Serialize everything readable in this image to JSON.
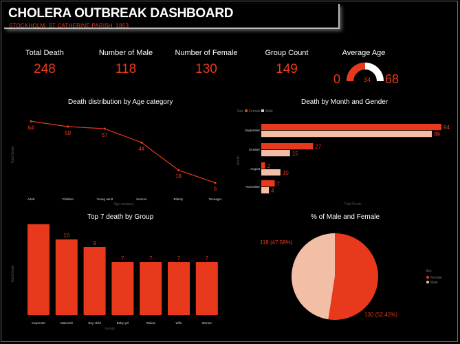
{
  "header": {
    "title": "CHOLERA OUTBREAK DASHBOARD",
    "subtitle": "STOCKHOLM- ST CATHERINE PARISH, 1853"
  },
  "kpis": {
    "total_death": {
      "label": "Total Death",
      "value": "248"
    },
    "male": {
      "label": "Number of Male",
      "value": "118"
    },
    "female": {
      "label": "Number of Female",
      "value": "130"
    },
    "group_count": {
      "label": "Group Count",
      "value": "149"
    },
    "average_age": {
      "label": "Average Age",
      "min": "0",
      "value": "34",
      "max": "68"
    }
  },
  "colors": {
    "accent": "#e8391d",
    "light": "#f3bea6",
    "gauge_track": "#ffffff"
  },
  "chart_data": [
    {
      "id": "age",
      "type": "line",
      "title": "Death distribution by Age category",
      "xlabel": "Age category",
      "ylabel": "Total Death",
      "categories": [
        "Adult",
        "Children",
        "Young adult",
        "Seniors",
        "Elderly",
        "Teenager"
      ],
      "values": [
        64,
        59,
        57,
        44,
        18,
        6
      ],
      "ylim": [
        0,
        70
      ]
    },
    {
      "id": "month",
      "type": "bar",
      "orientation": "horizontal",
      "title": "Death by Month and Gender",
      "legend_title": "Sex",
      "xlabel": "Total Death",
      "ylabel": "Month",
      "categories": [
        "September",
        "October",
        "August",
        "November"
      ],
      "series": [
        {
          "name": "Female",
          "values": [
            94,
            27,
            2,
            7
          ]
        },
        {
          "name": "Male",
          "values": [
            89,
            15,
            10,
            4
          ]
        }
      ],
      "xlim": [
        0,
        94
      ]
    },
    {
      "id": "group",
      "type": "bar",
      "title": "Top 7 death by Group",
      "xlabel": "Group",
      "ylabel": "Total Death",
      "categories": [
        "Carpenter",
        "Maimsell",
        "Boy child",
        "Baby girl",
        "Widow",
        "Wife",
        "Worker"
      ],
      "values": [
        12,
        10,
        9,
        7,
        7,
        7,
        7
      ],
      "ylim": [
        0,
        12
      ]
    },
    {
      "id": "sex",
      "type": "pie",
      "title": "% of Male and Female",
      "legend_title": "Sex",
      "labels": [
        "Female",
        "Male"
      ],
      "values": [
        130,
        118
      ],
      "data_labels": [
        "130 (52.42%)",
        "118 (47.58%)"
      ]
    }
  ]
}
